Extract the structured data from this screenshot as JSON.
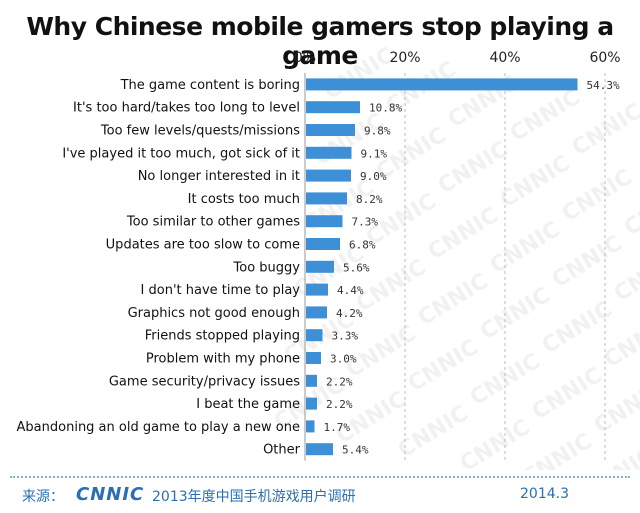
{
  "chart_data": {
    "type": "bar",
    "orientation": "horizontal",
    "title": "Why Chinese mobile gamers stop playing a game",
    "categories": [
      "The game content is boring",
      "It's too hard/takes too long to level",
      "Too few levels/quests/missions",
      "I've played it too much, got sick of it",
      "No longer interested in it",
      "It costs too much",
      "Too similar to other games",
      "Updates are too slow to come",
      "Too buggy",
      "I don't have time to play",
      "Graphics not good enough",
      "Friends stopped playing",
      "Problem with my phone",
      "Game security/privacy issues",
      "I beat the game",
      "Abandoning an old game to play a new one",
      "Other"
    ],
    "values": [
      54.3,
      10.8,
      9.8,
      9.1,
      9.0,
      8.2,
      7.3,
      6.8,
      5.6,
      4.4,
      4.2,
      3.3,
      3.0,
      2.2,
      2.2,
      1.7,
      5.4
    ],
    "value_labels": [
      "54.3%",
      "10.8%",
      "9.8%",
      "9.1%",
      "9.0%",
      "8.2%",
      "7.3%",
      "6.8%",
      "5.6%",
      "4.4%",
      "4.2%",
      "3.3%",
      "3.0%",
      "2.2%",
      "2.2%",
      "1.7%",
      "5.4%"
    ],
    "xlim": [
      0,
      60
    ],
    "xticks": [
      "0%",
      "20%",
      "40%",
      "60%"
    ],
    "axis_position": "top",
    "grid": "vertical dashed",
    "bar_color": "#3d8fd6"
  },
  "watermark": "CNNIC",
  "footer": {
    "source_label": "来源：",
    "logo": "CNNIC",
    "survey_title": "2013年度中国手机游戏用户调研",
    "date": "2014.3"
  }
}
